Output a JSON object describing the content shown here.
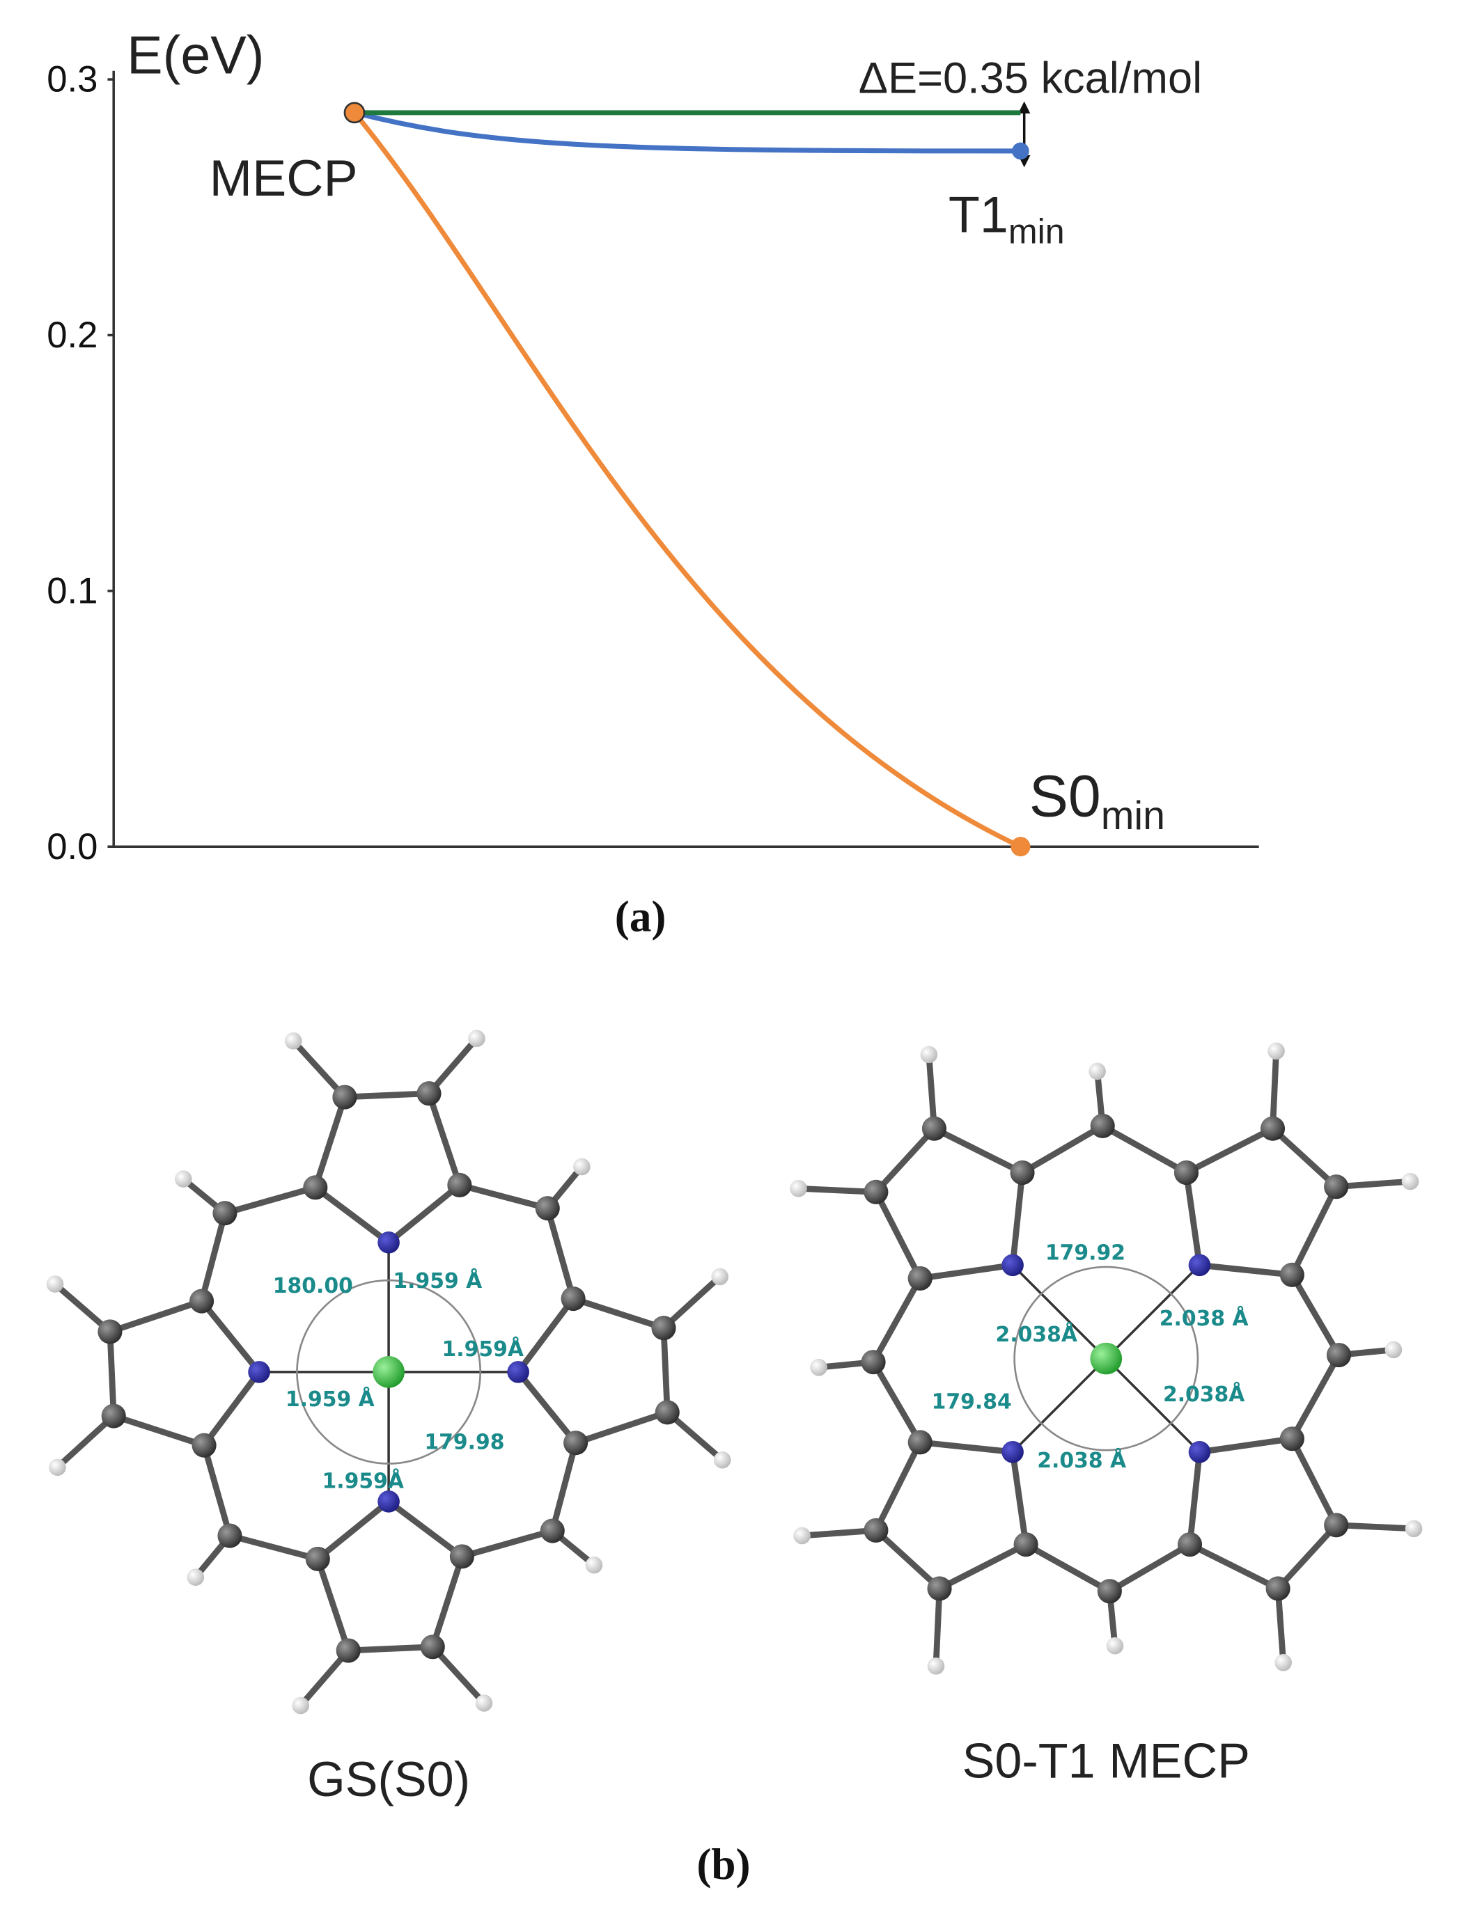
{
  "chart_data": {
    "type": "line",
    "y_label": "E(eV)",
    "ylim": [
      0,
      0.3
    ],
    "yticks": [
      {
        "value": 0,
        "label": "0.0"
      },
      0.1,
      0.2,
      0.3
    ],
    "series": [
      {
        "color": "#ee8a3a",
        "values": [
          0.287,
          0
        ]
      },
      {
        "color": "#4472c4",
        "values": [
          0.287,
          0.272
        ]
      },
      {
        "color": "#1e7a3c",
        "values": [
          0.287,
          0.287
        ]
      }
    ],
    "annotations": [
      {
        "text": "MECP"
      },
      {
        "text": "T1",
        "sub": "min"
      },
      {
        "text": "S0",
        "sub": "min"
      },
      {
        "text": "ΔE=0.35 kcal/mol"
      }
    ],
    "caption": "(a)"
  },
  "molecules": [
    {
      "label": "GS(S0)",
      "measurements": [
        "180.00",
        "1.959 Å",
        "1.959Å",
        "1.959 Å",
        "179.98",
        "1.959Å"
      ]
    },
    {
      "label": "S0-T1 MECP",
      "measurements": [
        "179.92",
        "2.038Å",
        "2.038 Å",
        "2.038Å",
        "179.84",
        "2.038 Å"
      ]
    }
  ],
  "caption_b": "(b)"
}
